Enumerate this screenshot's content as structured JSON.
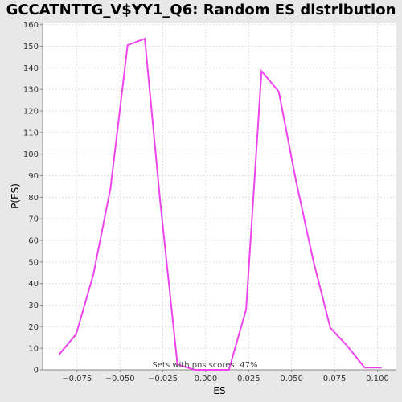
{
  "chart_data": {
    "type": "line",
    "title": "GCCATNTTG_V$YY1_Q6: Random ES distribution",
    "xlabel": "ES",
    "ylabel": "P(ES)",
    "annotation": "Sets with pos scores: 47%",
    "xlim": [
      -0.095,
      0.111
    ],
    "ylim": [
      0,
      161
    ],
    "grid": true,
    "line_color": "#ee44ee",
    "x_ticks": [
      -0.075,
      -0.05,
      -0.025,
      0.0,
      0.025,
      0.05,
      0.075,
      0.1
    ],
    "x_tick_labels": [
      "−0.075",
      "−0.050",
      "−0.025",
      "0.000",
      "0.025",
      "0.050",
      "0.075",
      "0.100"
    ],
    "y_ticks": [
      0,
      10,
      20,
      30,
      40,
      50,
      60,
      70,
      80,
      90,
      100,
      110,
      120,
      130,
      140,
      150,
      160
    ],
    "y_tick_labels": [
      "0",
      "10",
      "20",
      "30",
      "40",
      "50",
      "60",
      "70",
      "80",
      "90",
      "100",
      "110",
      "120",
      "130",
      "140",
      "150",
      "160"
    ],
    "series": [
      {
        "x": [
          -0.0855,
          -0.0755,
          -0.0655,
          -0.0555,
          -0.0455,
          -0.0355,
          -0.0265,
          -0.0165,
          -0.0065,
          0.0035,
          0.0135,
          0.0235,
          0.0325,
          0.0425,
          0.0525,
          0.0625,
          0.0725,
          0.0825,
          0.0925,
          0.1025
        ],
        "y": [
          7,
          16.5,
          44,
          84,
          150.5,
          153.5,
          78,
          2.5,
          0,
          0,
          0,
          28,
          138.5,
          129,
          88,
          51,
          19.5,
          11,
          1,
          1
        ]
      }
    ]
  }
}
